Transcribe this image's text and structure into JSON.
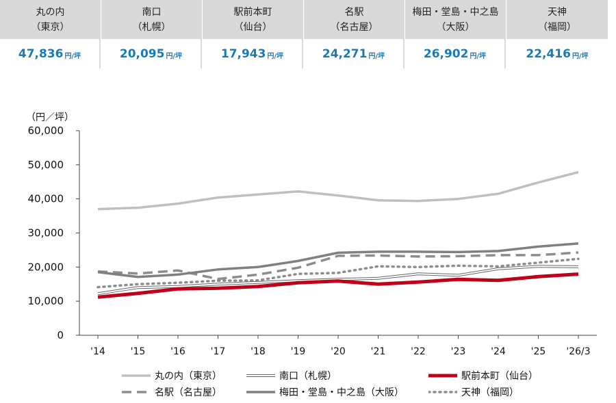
{
  "summary_cards": [
    {
      "name": "丸の内",
      "city": "（東京）",
      "value": "47,836",
      "unit": "円/坪"
    },
    {
      "name": "南口",
      "city": "（札幌）",
      "value": "20,095",
      "unit": "円/坪"
    },
    {
      "name": "駅前本町",
      "city": "（仙台）",
      "value": "17,943",
      "unit": "円/坪"
    },
    {
      "name": "名駅",
      "city": "（名古屋）",
      "value": "24,271",
      "unit": "円/坪"
    },
    {
      "name": "梅田・堂島・中之島",
      "city": "（大阪）",
      "value": "26,902",
      "unit": "円/坪"
    },
    {
      "name": "天神",
      "city": "（福岡）",
      "value": "22,416",
      "unit": "円/坪"
    }
  ],
  "colors": {
    "card_bg": "#d9d9d9",
    "value_text": "#1a7ab8",
    "axis": "#444444"
  },
  "chart_data": {
    "type": "line",
    "ylabel": "（円／坪）",
    "ylim": [
      0,
      60000
    ],
    "yticks": [
      0,
      10000,
      20000,
      30000,
      40000,
      50000,
      60000
    ],
    "ytick_labels": [
      "0",
      "10,000",
      "20,000",
      "30,000",
      "40,000",
      "50,000",
      "60,000"
    ],
    "categories": [
      "'14",
      "'15",
      "'16",
      "'17",
      "'18",
      "'19",
      "'20",
      "'21",
      "'22",
      "'23",
      "'24",
      "'25",
      "'26/3"
    ],
    "grid": false,
    "series": [
      {
        "name": "丸の内（東京）",
        "style": "solid",
        "color": "#bfbfbf",
        "width": 3.5,
        "values": [
          37000,
          37400,
          38600,
          40400,
          41300,
          42200,
          41000,
          39600,
          39400,
          40000,
          41500,
          44800,
          47836
        ]
      },
      {
        "name": "南口（札幌）",
        "style": "double",
        "color": "#666666",
        "width": 1,
        "values": [
          12200,
          14000,
          14300,
          15000,
          15500,
          16000,
          16400,
          16700,
          18000,
          17600,
          19500,
          20200,
          20095
        ]
      },
      {
        "name": "駅前本町（仙台）",
        "style": "solid",
        "color": "#c00018",
        "width": 5,
        "values": [
          11200,
          12300,
          13600,
          13800,
          14300,
          15400,
          15900,
          15000,
          15600,
          16400,
          16100,
          17200,
          17943
        ]
      },
      {
        "name": "名駅（名古屋）",
        "style": "dashed",
        "color": "#8c8c8c",
        "width": 3.5,
        "values": [
          18700,
          18100,
          19000,
          16500,
          17800,
          19800,
          23300,
          23400,
          23100,
          23200,
          23500,
          23500,
          24271
        ]
      },
      {
        "name": "梅田・堂島・中之島（大阪）",
        "style": "solid",
        "color": "#808080",
        "width": 3.5,
        "values": [
          18500,
          17100,
          17800,
          19300,
          20000,
          21800,
          24200,
          24500,
          24500,
          24400,
          24700,
          26000,
          26902
        ]
      },
      {
        "name": "天神（福岡）",
        "style": "dotted",
        "color": "#8c8c8c",
        "width": 3.5,
        "values": [
          14100,
          15000,
          15400,
          16000,
          16100,
          18000,
          18300,
          20200,
          20000,
          20400,
          20200,
          21300,
          22416
        ]
      }
    ],
    "legend_position": "bottom"
  }
}
